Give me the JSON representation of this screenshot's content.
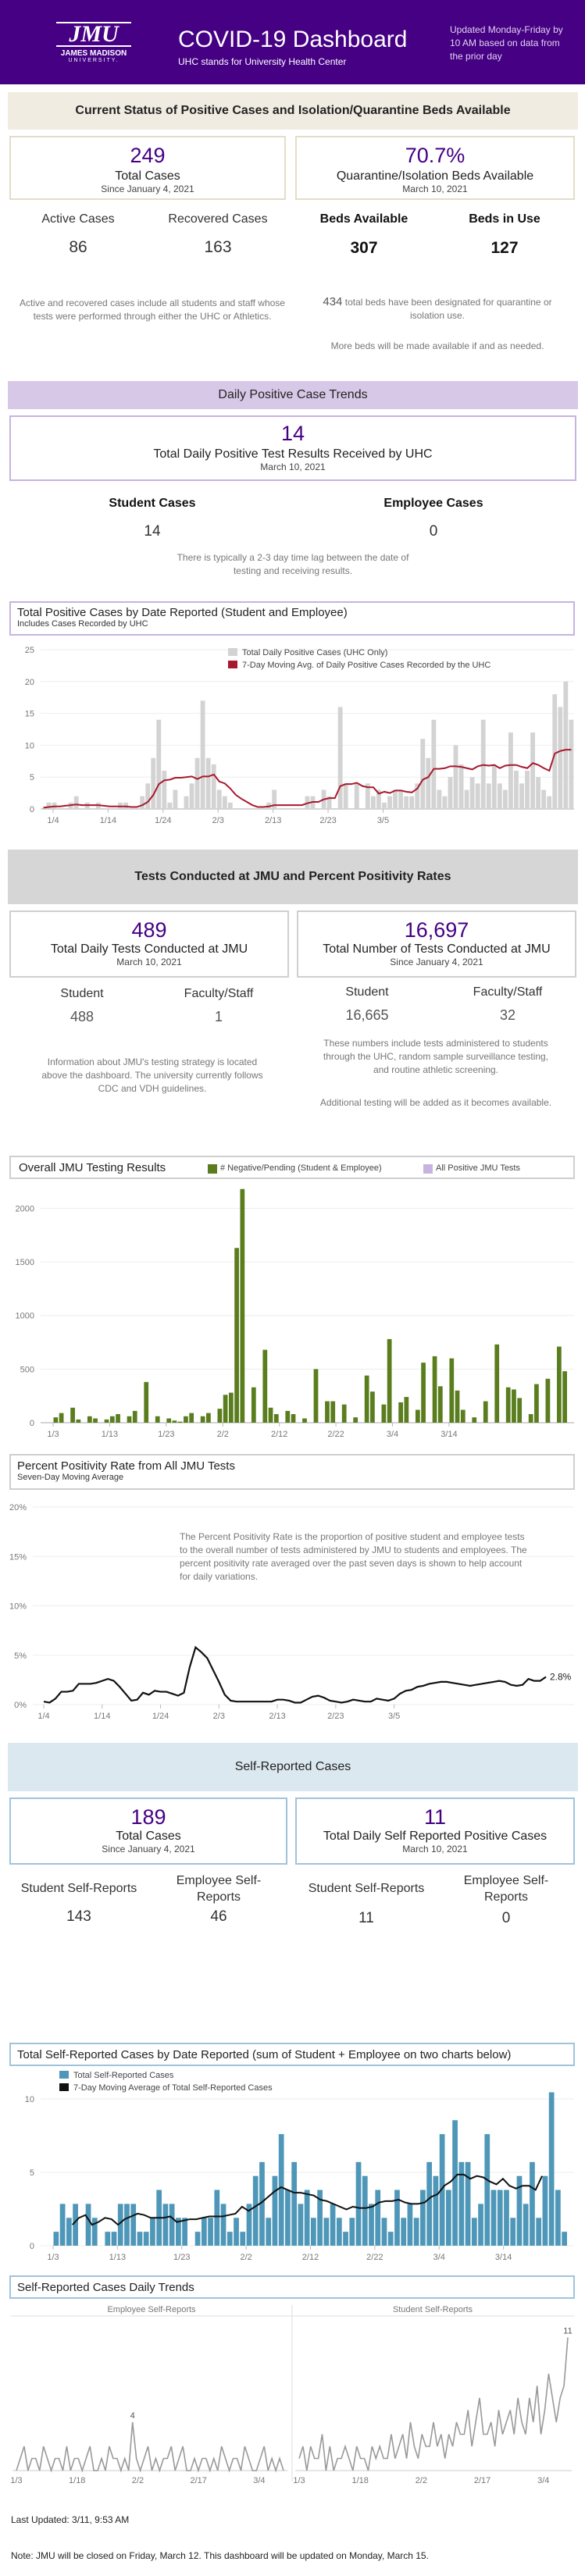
{
  "header": {
    "logo_text": "JMU",
    "logo_sub": "JAMES MADISON",
    "logo_sub2": "UNIVERSITY.",
    "title": "COVID-19 Dashboard",
    "subtitle": "UHC stands for University Health Center",
    "update": "Updated Monday-Friday by 10 AM based on data from the prior day"
  },
  "status": {
    "banner": "Current Status of Positive Cases and Isolation/Quarantine Beds Available",
    "total_value": "249",
    "total_label": "Total Cases",
    "total_sub": "Since January 4, 2021",
    "beds_value": "70.7%",
    "beds_label": "Quarantine/Isolation Beds Available",
    "beds_sub": "March 10, 2021",
    "active_label": "Active Cases",
    "active_value": "86",
    "recovered_label": "Recovered Cases",
    "recovered_value": "163",
    "bavail_label": "Beds Available",
    "bavail_value": "307",
    "buse_label": "Beds in Use",
    "buse_value": "127",
    "note_left": "Active and recovered cases include all students and staff whose tests were performed through either the UHC or Athletics.",
    "note_right1_num": "434",
    "note_right1": "total beds have been designated for quarantine or isolation use.",
    "note_right2": "More beds will be made available if and as needed."
  },
  "daily": {
    "banner": "Daily Positive Case Trends",
    "value": "14",
    "label": "Total Daily Positive Test Results Received by UHC",
    "sub": "March 10, 2021",
    "student_label": "Student Cases",
    "student_value": "14",
    "employee_label": "Employee Cases",
    "employee_value": "0",
    "note": "There is typically a 2-3 day time lag between the date of testing and receiving results."
  },
  "chart1": {
    "title": "Total Positive Cases by Date Reported (Student and Employee)",
    "sub": "Includes Cases Recorded by UHC",
    "legend1": "Total Daily Positive Cases (UHC Only)",
    "legend2": "7-Day Moving Avg. of Daily Positive Cases Recorded by the UHC"
  },
  "tests": {
    "banner": "Tests Conducted at JMU and Percent Positivity Rates",
    "daily_value": "489",
    "daily_label": "Total Daily Tests Conducted at JMU",
    "daily_sub": "March 10, 2021",
    "total_value": "16,697",
    "total_label": "Total Number of Tests Conducted at JMU",
    "total_sub": "Since January 4, 2021",
    "s1_label": "Student",
    "s1_value": "488",
    "f1_label": "Faculty/Staff",
    "f1_value": "1",
    "s2_label": "Student",
    "s2_value": "16,665",
    "f2_label": "Faculty/Staff",
    "f2_value": "32",
    "note_left": "Information about JMU's testing strategy is located above the dashboard. The university currently follows CDC and VDH guidelines.",
    "note_right1": "These numbers include tests administered to students through the UHC, random sample surveillance testing, and routine athletic screening.",
    "note_right2": "Additional testing will be added as it becomes available."
  },
  "chart2": {
    "title": "Overall JMU Testing Results",
    "legend1": "# Negative/Pending (Student & Employee)",
    "legend2": "All Positive JMU Tests"
  },
  "chart3": {
    "title": "Percent Positivity Rate from All JMU Tests",
    "sub": "Seven-Day Moving Average",
    "note": "The Percent Positivity Rate is the proportion of positive student and employee tests to the overall number of tests administered by JMU to students and employees.  The percent positivity rate averaged over the past seven days is shown to help account for daily variations.",
    "end_label": "2.8%"
  },
  "self": {
    "banner": "Self-Reported Cases",
    "total_value": "189",
    "total_label": "Total Cases",
    "total_sub": "Since January 4, 2021",
    "daily_value": "11",
    "daily_label": "Total Daily Self Reported Positive Cases",
    "daily_sub": "March 10, 2021",
    "s1_label": "Student Self-Reports",
    "s1_value": "143",
    "e1_label": "Employee Self-Reports",
    "e1_value": "46",
    "s2_label": "Student Self-Reports",
    "s2_value": "11",
    "e2_label": "Employee Self-Reports",
    "e2_value": "0"
  },
  "chart4": {
    "title": "Total Self-Reported Cases by Date Reported (sum of Student + Employee on two charts below)",
    "legend1": "Total Self-Reported Cases",
    "legend2": "7-Day Moving Average of Total Self-Reported Cases"
  },
  "chart5": {
    "title": "Self-Reported Cases Daily Trends",
    "left_title": "Employee Self-Reports",
    "right_title": "Student Self-Reports",
    "left_peak": "4",
    "right_peak": "11"
  },
  "footer": {
    "updated": "Last Updated: 3/11, 9:53 AM",
    "note": "Note: JMU will be closed on Friday, March 12. This dashboard will be updated on Monday, March 15."
  },
  "colors": {
    "purple": "#450084",
    "gray_bar": "#d3d3d3",
    "red_line": "#a8192e",
    "green_bar": "#5a7d1e",
    "blue_bar": "#4f97b8"
  },
  "chart_data": [
    {
      "type": "bar",
      "title": "Total Positive Cases by Date Reported (Student and Employee)",
      "x_ticks": [
        "1/4",
        "1/14",
        "1/24",
        "2/3",
        "2/13",
        "2/23",
        "3/5"
      ],
      "ylim": [
        0,
        25
      ],
      "y_ticks": [
        0,
        5,
        10,
        15,
        20,
        25
      ],
      "series": [
        {
          "name": "Total Daily Positive Cases (UHC Only)",
          "values": [
            0,
            1,
            1,
            0,
            0,
            1,
            2,
            0,
            1,
            0,
            1,
            0,
            0,
            0,
            1,
            1,
            0,
            0,
            2,
            4,
            8,
            14,
            6,
            1,
            3,
            0,
            2,
            4,
            8,
            17,
            8,
            7,
            3,
            2,
            1,
            0,
            0,
            0,
            0,
            0,
            0,
            1,
            3,
            0,
            0,
            0,
            0,
            0,
            2,
            2,
            0,
            3,
            2,
            0,
            16,
            4,
            0,
            4,
            0,
            4,
            2,
            3,
            1,
            2,
            3,
            3,
            2,
            2,
            4,
            11,
            8,
            14,
            3,
            2,
            5,
            10,
            7,
            3,
            5,
            4,
            14,
            4,
            7,
            4,
            3,
            12,
            6,
            4,
            6,
            12,
            5,
            3,
            2,
            18,
            16,
            20,
            14
          ]
        },
        {
          "name": "7-Day Moving Avg. of Daily Positive Cases Recorded by the UHC",
          "values": [
            0.2,
            0.3,
            0.4,
            0.4,
            0.5,
            0.6,
            0.7,
            0.6,
            0.6,
            0.6,
            0.6,
            0.5,
            0.4,
            0.4,
            0.4,
            0.4,
            0.3,
            0.3,
            0.6,
            1.1,
            2.2,
            3.9,
            4.5,
            4.6,
            4.9,
            4.9,
            5.0,
            5.1,
            4.7,
            5.1,
            5.1,
            5.4,
            4.3,
            4.0,
            3.2,
            2.2,
            1.6,
            1.1,
            0.6,
            0.3,
            0.3,
            0.4,
            0.6,
            0.6,
            0.6,
            0.6,
            0.6,
            0.6,
            0.9,
            1.1,
            1.1,
            1.5,
            1.7,
            1.7,
            3.6,
            3.9,
            3.9,
            4.1,
            3.6,
            3.4,
            3.4,
            2.4,
            2.7,
            2.5,
            2.9,
            2.9,
            2.7,
            2.6,
            3.2,
            4.6,
            5.0,
            6.3,
            6.3,
            6.4,
            6.7,
            6.7,
            6.6,
            6.4,
            6.2,
            6.7,
            6.9,
            6.8,
            6.9,
            6.4,
            6.8,
            6.9,
            6.9,
            6.6,
            6.4,
            7.2,
            6.9,
            6.4,
            6.0,
            8.7,
            9.1,
            9.3,
            9.3
          ]
        }
      ]
    },
    {
      "type": "bar",
      "title": "Overall JMU Testing Results",
      "x_ticks": [
        "1/3",
        "1/13",
        "1/23",
        "2/2",
        "2/12",
        "2/22",
        "3/4",
        "3/14"
      ],
      "ylim": [
        0,
        2200
      ],
      "y_ticks": [
        0,
        500,
        1000,
        1500,
        2000
      ],
      "series": [
        {
          "name": "# Negative/Pending (Student & Employee)",
          "values": [
            50,
            90,
            0,
            140,
            30,
            0,
            60,
            40,
            0,
            30,
            60,
            80,
            0,
            60,
            110,
            0,
            380,
            0,
            60,
            0,
            40,
            20,
            10,
            60,
            90,
            0,
            60,
            90,
            0,
            130,
            260,
            280,
            1630,
            2180,
            0,
            330,
            0,
            680,
            140,
            80,
            0,
            110,
            80,
            0,
            40,
            0,
            500,
            0,
            200,
            200,
            0,
            170,
            0,
            50,
            0,
            440,
            290,
            0,
            170,
            780,
            0,
            190,
            240,
            0,
            120,
            560,
            0,
            620,
            340,
            0,
            600,
            300,
            120,
            0,
            50,
            0,
            200,
            0,
            730,
            0,
            330,
            310,
            230,
            0,
            80,
            360,
            0,
            410,
            0,
            710,
            480
          ]
        },
        {
          "name": "All Positive JMU Tests",
          "values": []
        }
      ]
    },
    {
      "type": "line",
      "title": "Percent Positivity Rate from All JMU Tests",
      "x_ticks": [
        "1/4",
        "1/14",
        "1/24",
        "2/3",
        "2/13",
        "2/23",
        "3/5"
      ],
      "ylim": [
        0,
        20
      ],
      "y_ticks": [
        "0%",
        "5%",
        "10%",
        "15%",
        "20%"
      ],
      "series": [
        {
          "name": "Seven-Day Moving Average",
          "values": [
            0.3,
            0.2,
            0.6,
            1.3,
            1.3,
            1.4,
            2.1,
            2.1,
            2.1,
            2.2,
            2.4,
            2.6,
            2.4,
            1.8,
            1.1,
            0.4,
            0.5,
            1.2,
            1.0,
            1.4,
            1.3,
            1.3,
            1.1,
            0.9,
            1.2,
            3.8,
            5.8,
            5.3,
            4.7,
            3.5,
            2.3,
            1.0,
            0.4,
            0.3,
            0.3,
            0.3,
            0.3,
            0.3,
            0.3,
            0.3,
            0.5,
            0.5,
            0.4,
            0.2,
            0.2,
            0.5,
            0.8,
            0.9,
            0.7,
            0.4,
            0.3,
            0.2,
            0.3,
            0.5,
            0.4,
            0.3,
            0.3,
            0.6,
            0.5,
            0.4,
            0.6,
            1.1,
            1.4,
            1.5,
            1.8,
            1.9,
            2.1,
            2.2,
            2.3,
            2.3,
            2.2,
            2.1,
            2.0,
            1.9,
            2.0,
            2.1,
            2.2,
            2.3,
            2.4,
            2.3,
            2.0,
            1.9,
            2.0,
            2.6,
            2.4,
            2.4,
            2.8
          ]
        }
      ]
    },
    {
      "type": "bar",
      "title": "Total Self-Reported Cases by Date Reported",
      "x_ticks": [
        "1/3",
        "1/13",
        "1/23",
        "2/2",
        "2/12",
        "2/22",
        "3/4",
        "3/14"
      ],
      "ylim": [
        0,
        10
      ],
      "y_ticks": [
        0,
        5,
        10
      ],
      "series": [
        {
          "name": "Total Self-Reported Cases",
          "values": [
            1,
            3,
            2,
            3,
            0,
            3,
            2,
            0,
            1,
            1,
            3,
            3,
            3,
            1,
            1,
            2,
            4,
            3,
            3,
            2,
            2,
            0,
            1,
            2,
            2,
            4,
            3,
            1,
            2,
            1,
            3,
            5,
            6,
            2,
            5,
            8,
            4,
            6,
            3,
            4,
            2,
            4,
            2,
            3,
            2,
            1,
            2,
            6,
            5,
            3,
            4,
            2,
            1,
            4,
            2,
            3,
            2,
            4,
            6,
            5,
            8,
            4,
            9,
            6,
            6,
            2,
            3,
            8,
            4,
            4,
            4,
            2,
            5,
            3,
            6,
            2,
            5,
            11,
            4,
            1
          ]
        },
        {
          "name": "7-Day Moving Average of Total Self-Reported Cases",
          "values": [
            1.5,
            2.0,
            2.2,
            1.5,
            1.7,
            2.0,
            1.9,
            1.5,
            1.9,
            2.1,
            2.3,
            2.2,
            2.0,
            2.0,
            2.0,
            2.1,
            1.7,
            1.8,
            1.9,
            1.9,
            2.0,
            2.1,
            2.1,
            2.1,
            2.2,
            2.3,
            2.8,
            2.5,
            2.8,
            3.1,
            3.5,
            3.9,
            4.2,
            4.0,
            3.8,
            3.8,
            3.7,
            3.6,
            3.3,
            3.2,
            3.0,
            2.8,
            2.6,
            2.8,
            2.7,
            2.7,
            2.8,
            3.1,
            3.2,
            3.2,
            3.3,
            3.1,
            3.0,
            3.0,
            3.1,
            3.5,
            3.7,
            4.3,
            4.6,
            5.1,
            5.1,
            4.8,
            5.0,
            4.9,
            4.6,
            4.4,
            4.8,
            4.3,
            4.1,
            4.3,
            4.3,
            4.0,
            5.0
          ]
        }
      ]
    },
    {
      "type": "line",
      "title": "Employee Self-Reports",
      "x_ticks": [
        "1/3",
        "1/18",
        "2/2",
        "2/17",
        "3/4"
      ],
      "series": [
        {
          "name": "Employee Self-Reports",
          "values": [
            0,
            1,
            2,
            0,
            1,
            1,
            0,
            2,
            1,
            0,
            1,
            1,
            0,
            2,
            0,
            1,
            1,
            0,
            1,
            2,
            0,
            0,
            1,
            0,
            2,
            1,
            1,
            0,
            1,
            0,
            4,
            1,
            0,
            1,
            2,
            0,
            1,
            0,
            1,
            1,
            2,
            0,
            1,
            2,
            0,
            0,
            1,
            0,
            1,
            1,
            0,
            1,
            0,
            2,
            1,
            0,
            1,
            1,
            0,
            2,
            1,
            0,
            0,
            1,
            2,
            0,
            1,
            0,
            1,
            0
          ]
        }
      ]
    },
    {
      "type": "line",
      "title": "Student Self-Reports",
      "x_ticks": [
        "1/3",
        "1/18",
        "2/2",
        "2/17",
        "3/4"
      ],
      "series": [
        {
          "name": "Student Self-Reports",
          "values": [
            1,
            2,
            0,
            2,
            1,
            1,
            3,
            0,
            2,
            0,
            1,
            1,
            2,
            1,
            0,
            2,
            1,
            1,
            0,
            2,
            1,
            2,
            1,
            1,
            3,
            1,
            2,
            3,
            1,
            4,
            2,
            1,
            3,
            2,
            2,
            4,
            2,
            3,
            1,
            3,
            2,
            4,
            3,
            3,
            5,
            2,
            4,
            6,
            3,
            3,
            4,
            2,
            5,
            3,
            4,
            5,
            3,
            6,
            4,
            3,
            6,
            4,
            7,
            3,
            5,
            8,
            6,
            4,
            6,
            7,
            11
          ]
        }
      ]
    }
  ]
}
